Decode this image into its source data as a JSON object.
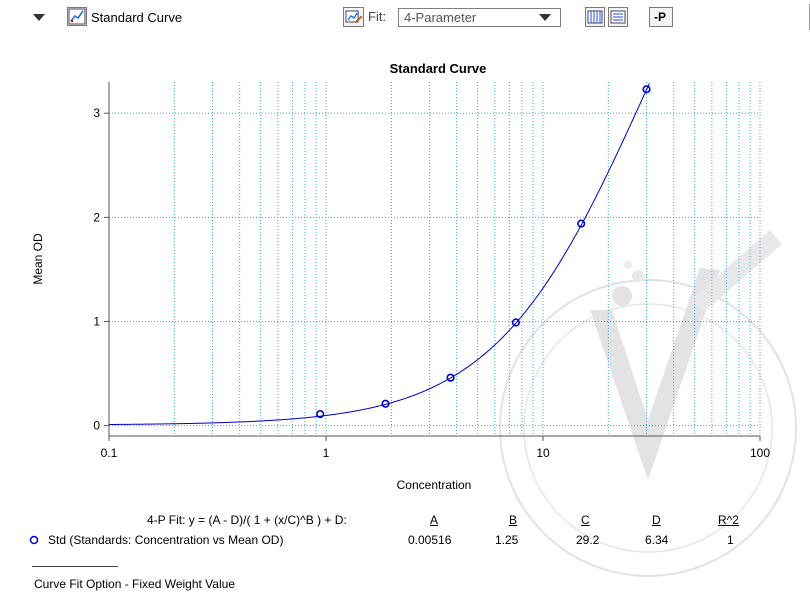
{
  "toolbar": {
    "section_title": "Standard Curve",
    "fit_label": "Fit:",
    "fit_value": "4-Parameter",
    "p_button_label": "-P"
  },
  "chart_data": {
    "type": "scatter",
    "title": "Standard Curve",
    "xlabel": "Concentration",
    "ylabel": "Mean OD",
    "xscale": "log",
    "xlim": [
      0.1,
      100
    ],
    "ylim": [
      -0.1,
      3.3
    ],
    "x_tick_labels": [
      "0.1",
      "1",
      "10",
      "100"
    ],
    "y_tick_labels": [
      "0",
      "1",
      "2",
      "3"
    ],
    "grid": true,
    "series": [
      {
        "name": "Std (Standards: Concentration vs Mean OD)",
        "marker": "open-circle",
        "color": "#0000cc",
        "x": [
          0.94,
          1.88,
          3.75,
          7.5,
          15,
          30
        ],
        "y": [
          0.11,
          0.21,
          0.46,
          0.99,
          1.94,
          3.23
        ]
      }
    ],
    "fit": {
      "model": "4-parameter logistic",
      "A": 0.00516,
      "B": 1.25,
      "C": 29.2,
      "D": 6.34,
      "R2": 1,
      "color": "#0000cc"
    }
  },
  "legend": {
    "equation": "4-P Fit:  y = (A - D)/( 1 + (x/C)^B ) + D:",
    "headers": [
      "A",
      "B",
      "C",
      "D",
      "R^2"
    ],
    "series_label": "Std (Standards: Concentration vs Mean OD)",
    "values": [
      "0.00516",
      "1.25",
      "29.2",
      "6.34",
      "1"
    ]
  },
  "footer": {
    "note": "Curve Fit Option - Fixed Weight Value"
  },
  "colors": {
    "grid": "#33aadd",
    "series": "#0000cc",
    "watermark": "#c8c8c8"
  }
}
